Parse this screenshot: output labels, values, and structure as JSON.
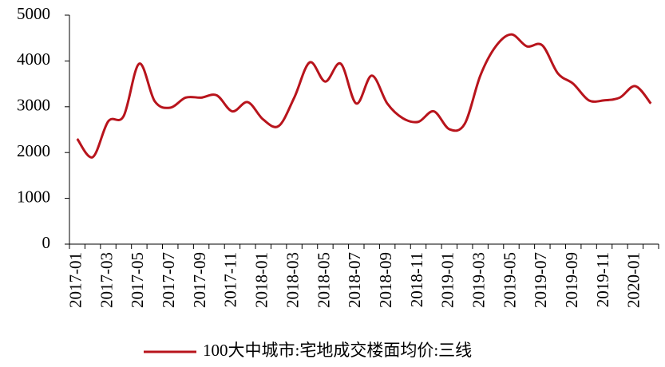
{
  "chart_data": {
    "type": "line",
    "categories": [
      "2017-01",
      null,
      "2017-03",
      null,
      "2017-05",
      null,
      "2017-07",
      null,
      "2017-09",
      null,
      "2017-11",
      null,
      "2018-01",
      null,
      "2018-03",
      null,
      "2018-05",
      null,
      "2018-07",
      null,
      "2018-09",
      null,
      "2018-11",
      null,
      "2019-01",
      null,
      "2019-03",
      null,
      "2019-05",
      null,
      "2019-07",
      null,
      "2019-09",
      null,
      "2019-11",
      null,
      "2020-01",
      null
    ],
    "series": [
      {
        "name": "100大中城市:宅地成交楼面均价:三线",
        "color": "#b8141c",
        "values": [
          2300,
          1900,
          2680,
          2800,
          3940,
          3120,
          2980,
          3200,
          3200,
          3250,
          2900,
          3100,
          2720,
          2580,
          3200,
          3970,
          3550,
          3940,
          3070,
          3680,
          3070,
          2750,
          2670,
          2900,
          2510,
          2630,
          3680,
          4320,
          4580,
          4320,
          4340,
          3730,
          3500,
          3140,
          3140,
          3200,
          3450,
          3070
        ]
      }
    ],
    "ylim": [
      0,
      5000
    ],
    "yticks": [
      0,
      1000,
      2000,
      3000,
      4000,
      5000
    ],
    "grid": false,
    "legend": "bottom"
  }
}
